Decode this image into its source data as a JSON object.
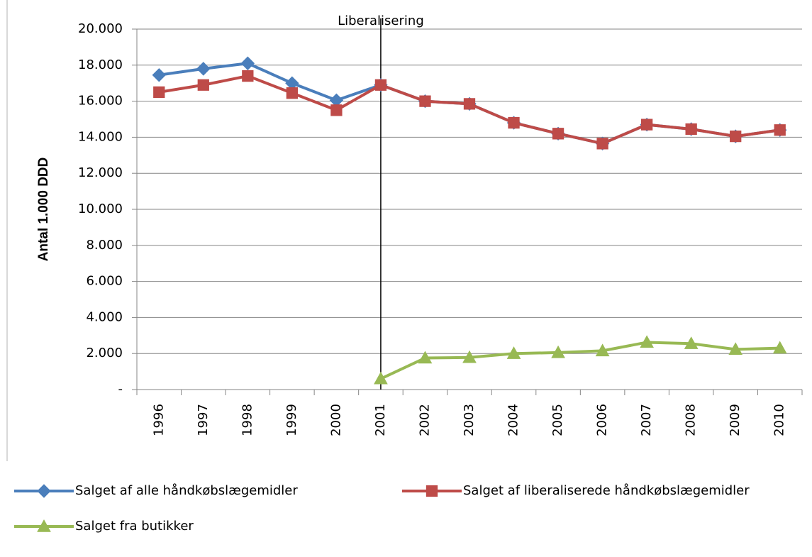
{
  "chart_data": {
    "type": "line",
    "y_label": "Antal 1.000 DDD",
    "categories": [
      "1996",
      "1997",
      "1998",
      "1999",
      "2000",
      "2001",
      "2002",
      "2003",
      "2004",
      "2005",
      "2006",
      "2007",
      "2008",
      "2009",
      "2010"
    ],
    "series": [
      {
        "name": "Salget af alle håndkøbslægemidler",
        "color": "#4a7ebb",
        "marker": "diamond",
        "values": [
          17450,
          17800,
          18100,
          17000,
          16050,
          16900,
          16000,
          15850,
          14800,
          14200,
          13650,
          14700,
          14450,
          14050,
          14400
        ]
      },
      {
        "name": "Salget af liberaliserede håndkøbslægemidler",
        "color": "#be4b48",
        "marker": "square",
        "values": [
          16500,
          16900,
          17400,
          16450,
          15500,
          16900,
          16000,
          15850,
          14800,
          14200,
          13650,
          14700,
          14450,
          14050,
          14400
        ]
      },
      {
        "name": "Salget fra butikker",
        "color": "#98b954",
        "marker": "triangle",
        "values": [
          null,
          null,
          null,
          null,
          null,
          600,
          1750,
          1780,
          2000,
          2050,
          2150,
          2620,
          2550,
          2230,
          2300
        ]
      }
    ],
    "annotation": {
      "text": "Liberalisering",
      "x": "2001"
    },
    "ylim": [
      0,
      20000
    ],
    "yticks": [
      {
        "value": 0,
        "label": "-"
      },
      {
        "value": 2000,
        "label": "2.000"
      },
      {
        "value": 4000,
        "label": "4.000"
      },
      {
        "value": 6000,
        "label": "6.000"
      },
      {
        "value": 8000,
        "label": "8.000"
      },
      {
        "value": 10000,
        "label": "10.000"
      },
      {
        "value": 12000,
        "label": "12.000"
      },
      {
        "value": 14000,
        "label": "14.000"
      },
      {
        "value": 16000,
        "label": "16.000"
      },
      {
        "value": 18000,
        "label": "18.000"
      },
      {
        "value": 20000,
        "label": "20.000"
      }
    ],
    "grid": true,
    "legend": "bottom"
  }
}
